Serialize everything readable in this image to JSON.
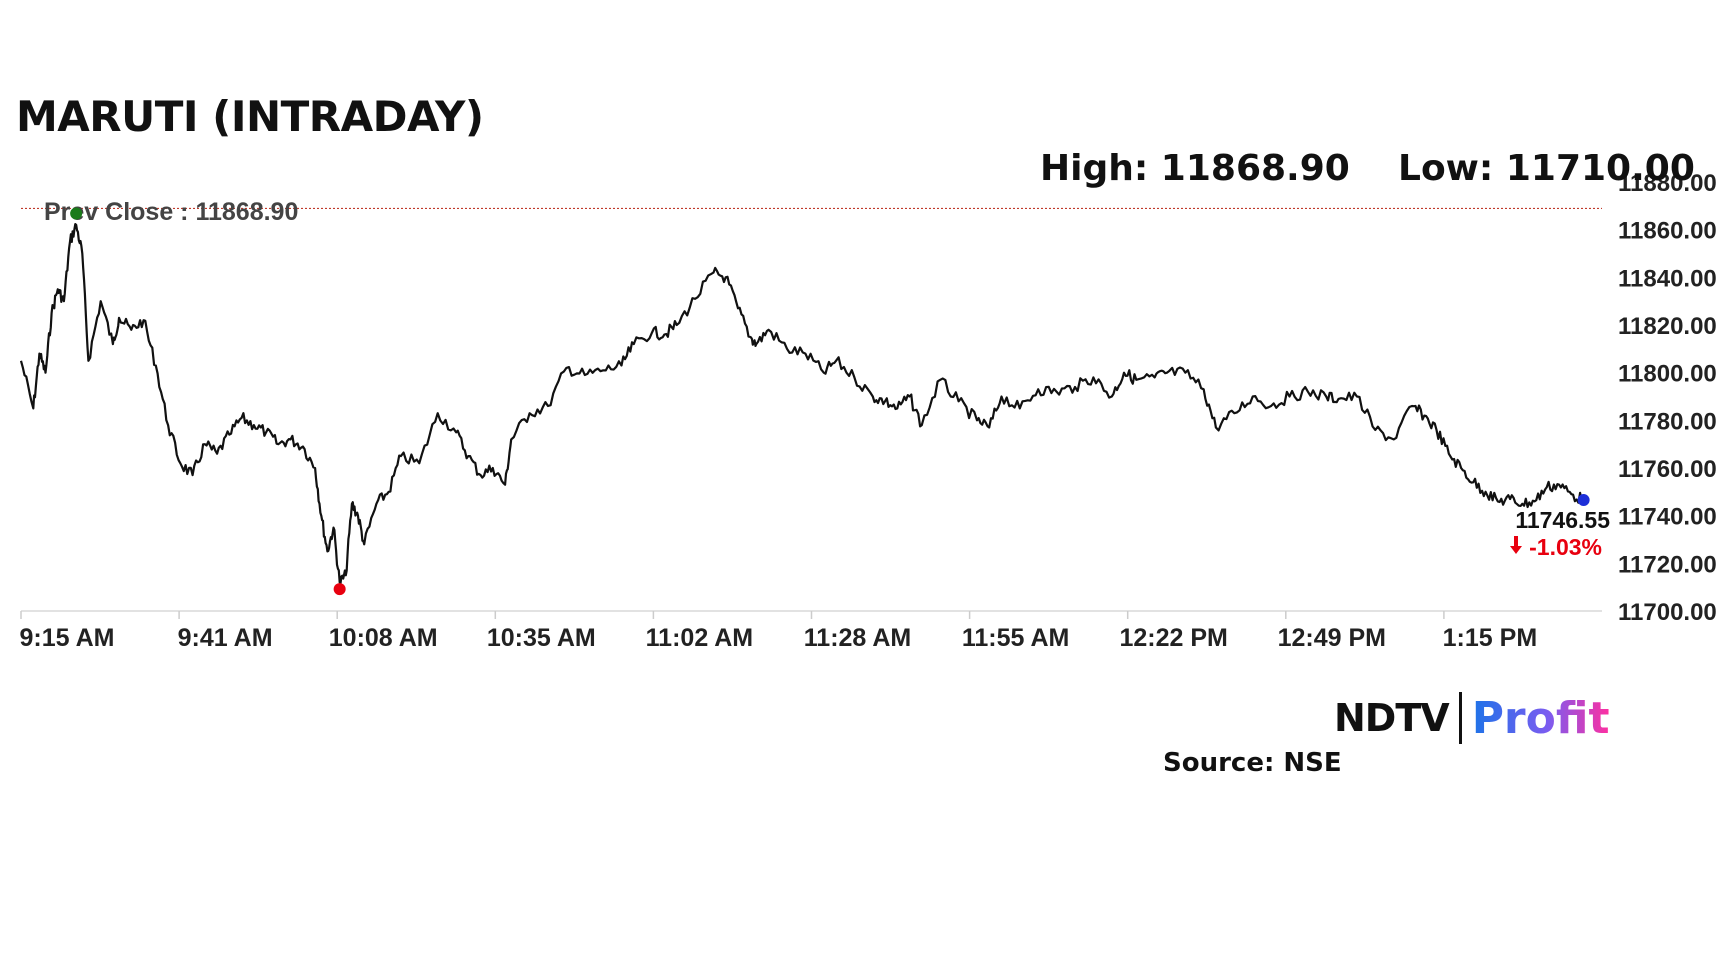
{
  "title": "MARUTI (INTRADAY)",
  "high_label": "High: 11868.90",
  "low_label": "Low: 11710.00",
  "source": "Source: NSE",
  "logo": {
    "brand": "NDTV",
    "product": "Profit"
  },
  "colors": {
    "line": "#111111",
    "prev_close": "#c0392b",
    "high_dot": "#1a7a1a",
    "low_dot": "#e8000f",
    "last_dot": "#1d2fd8",
    "change": "#e8000f",
    "profit_start": "#1e73e8",
    "profit_end": "#ff2fa0"
  },
  "chart_data": {
    "type": "line",
    "title": "MARUTI (INTRADAY)",
    "xlabel": "",
    "ylabel": "",
    "ylim": [
      11700,
      11880
    ],
    "yticks": [
      "11700.00",
      "11720.00",
      "11740.00",
      "11760.00",
      "11780.00",
      "11800.00",
      "11820.00",
      "11840.00",
      "11860.00",
      "11880.00"
    ],
    "xticks": [
      "9:15 AM",
      "9:41 AM",
      "10:08 AM",
      "10:35 AM",
      "11:02 AM",
      "11:28 AM",
      "11:55 AM",
      "12:22 PM",
      "12:49 PM",
      "1:15 PM"
    ],
    "prev_close": {
      "label": "Prev Close : 11868.90",
      "value": 11868.9
    },
    "high": 11868.9,
    "low": 11710.0,
    "last": {
      "value_label": "11746.55",
      "change_label": "-1.03%",
      "value": 11746.55
    },
    "x": [
      "9:15",
      "9:17",
      "9:18",
      "9:19",
      "9:20",
      "9:21",
      "9:22",
      "9:23",
      "9:24",
      "9:25",
      "9:26",
      "9:28",
      "9:30",
      "9:31",
      "9:33",
      "9:35",
      "9:37",
      "9:39",
      "9:41",
      "9:43",
      "9:45",
      "9:47",
      "9:49",
      "9:51",
      "9:53",
      "9:55",
      "9:57",
      "9:59",
      "10:01",
      "10:03",
      "10:04",
      "10:05",
      "10:06",
      "10:07",
      "10:08",
      "10:09",
      "10:10",
      "10:11",
      "10:13",
      "10:15",
      "10:17",
      "10:20",
      "10:23",
      "10:26",
      "10:28",
      "10:30",
      "10:32",
      "10:34",
      "10:35",
      "10:38",
      "10:41",
      "10:44",
      "10:47",
      "10:50",
      "10:53",
      "10:55",
      "10:58",
      "11:00",
      "11:02",
      "11:05",
      "11:08",
      "11:10",
      "11:12",
      "11:14",
      "11:15",
      "11:17",
      "11:20",
      "11:23",
      "11:26",
      "11:28",
      "11:31",
      "11:34",
      "11:36",
      "11:38",
      "11:40",
      "11:42",
      "11:45",
      "11:48",
      "11:51",
      "11:53",
      "11:55",
      "11:58",
      "12:01",
      "12:04",
      "12:07",
      "12:10",
      "12:13",
      "12:15",
      "12:17",
      "12:20",
      "12:22",
      "12:25",
      "12:28",
      "12:30",
      "12:33",
      "12:36",
      "12:39",
      "12:42",
      "12:45",
      "12:48",
      "12:50",
      "12:53",
      "12:56",
      "12:59",
      "13:02",
      "13:04",
      "13:06",
      "13:08",
      "13:10",
      "13:12",
      "13:14",
      "13:16",
      "13:18",
      "13:20",
      "13:22",
      "13:24",
      "13:26",
      "13:28",
      "13:30"
    ],
    "series": [
      {
        "values": [
          11805,
          11785,
          11808,
          11800,
          11825,
          11835,
          11830,
          11855,
          11862,
          11850,
          11805,
          11830,
          11812,
          11823,
          11818,
          11822,
          11803,
          11778,
          11762,
          11757,
          11770,
          11766,
          11774,
          11781,
          11778,
          11775,
          11770,
          11772,
          11769,
          11760,
          11740,
          11725,
          11735,
          11712,
          11715,
          11745,
          11740,
          11728,
          11745,
          11750,
          11765,
          11762,
          11783,
          11775,
          11765,
          11757,
          11760,
          11753,
          11772,
          11783,
          11786,
          11802,
          11799,
          11801,
          11803,
          11812,
          11817,
          11816,
          11820,
          11831,
          11842,
          11840,
          11827,
          11815,
          11812,
          11818,
          11810,
          11808,
          11800,
          11805,
          11798,
          11790,
          11788,
          11785,
          11790,
          11778,
          11797,
          11788,
          11780,
          11777,
          11790,
          11785,
          11793,
          11792,
          11794,
          11798,
          11790,
          11800,
          11797,
          11798,
          11800,
          11800,
          11793,
          11777,
          11783,
          11790,
          11786,
          11790,
          11792,
          11790,
          11789,
          11790,
          11776,
          11772,
          11786,
          11782,
          11776,
          11766,
          11760,
          11754,
          11750,
          11746,
          11747,
          11745,
          11746,
          11752,
          11753,
          11749,
          11746.55
        ]
      }
    ]
  }
}
